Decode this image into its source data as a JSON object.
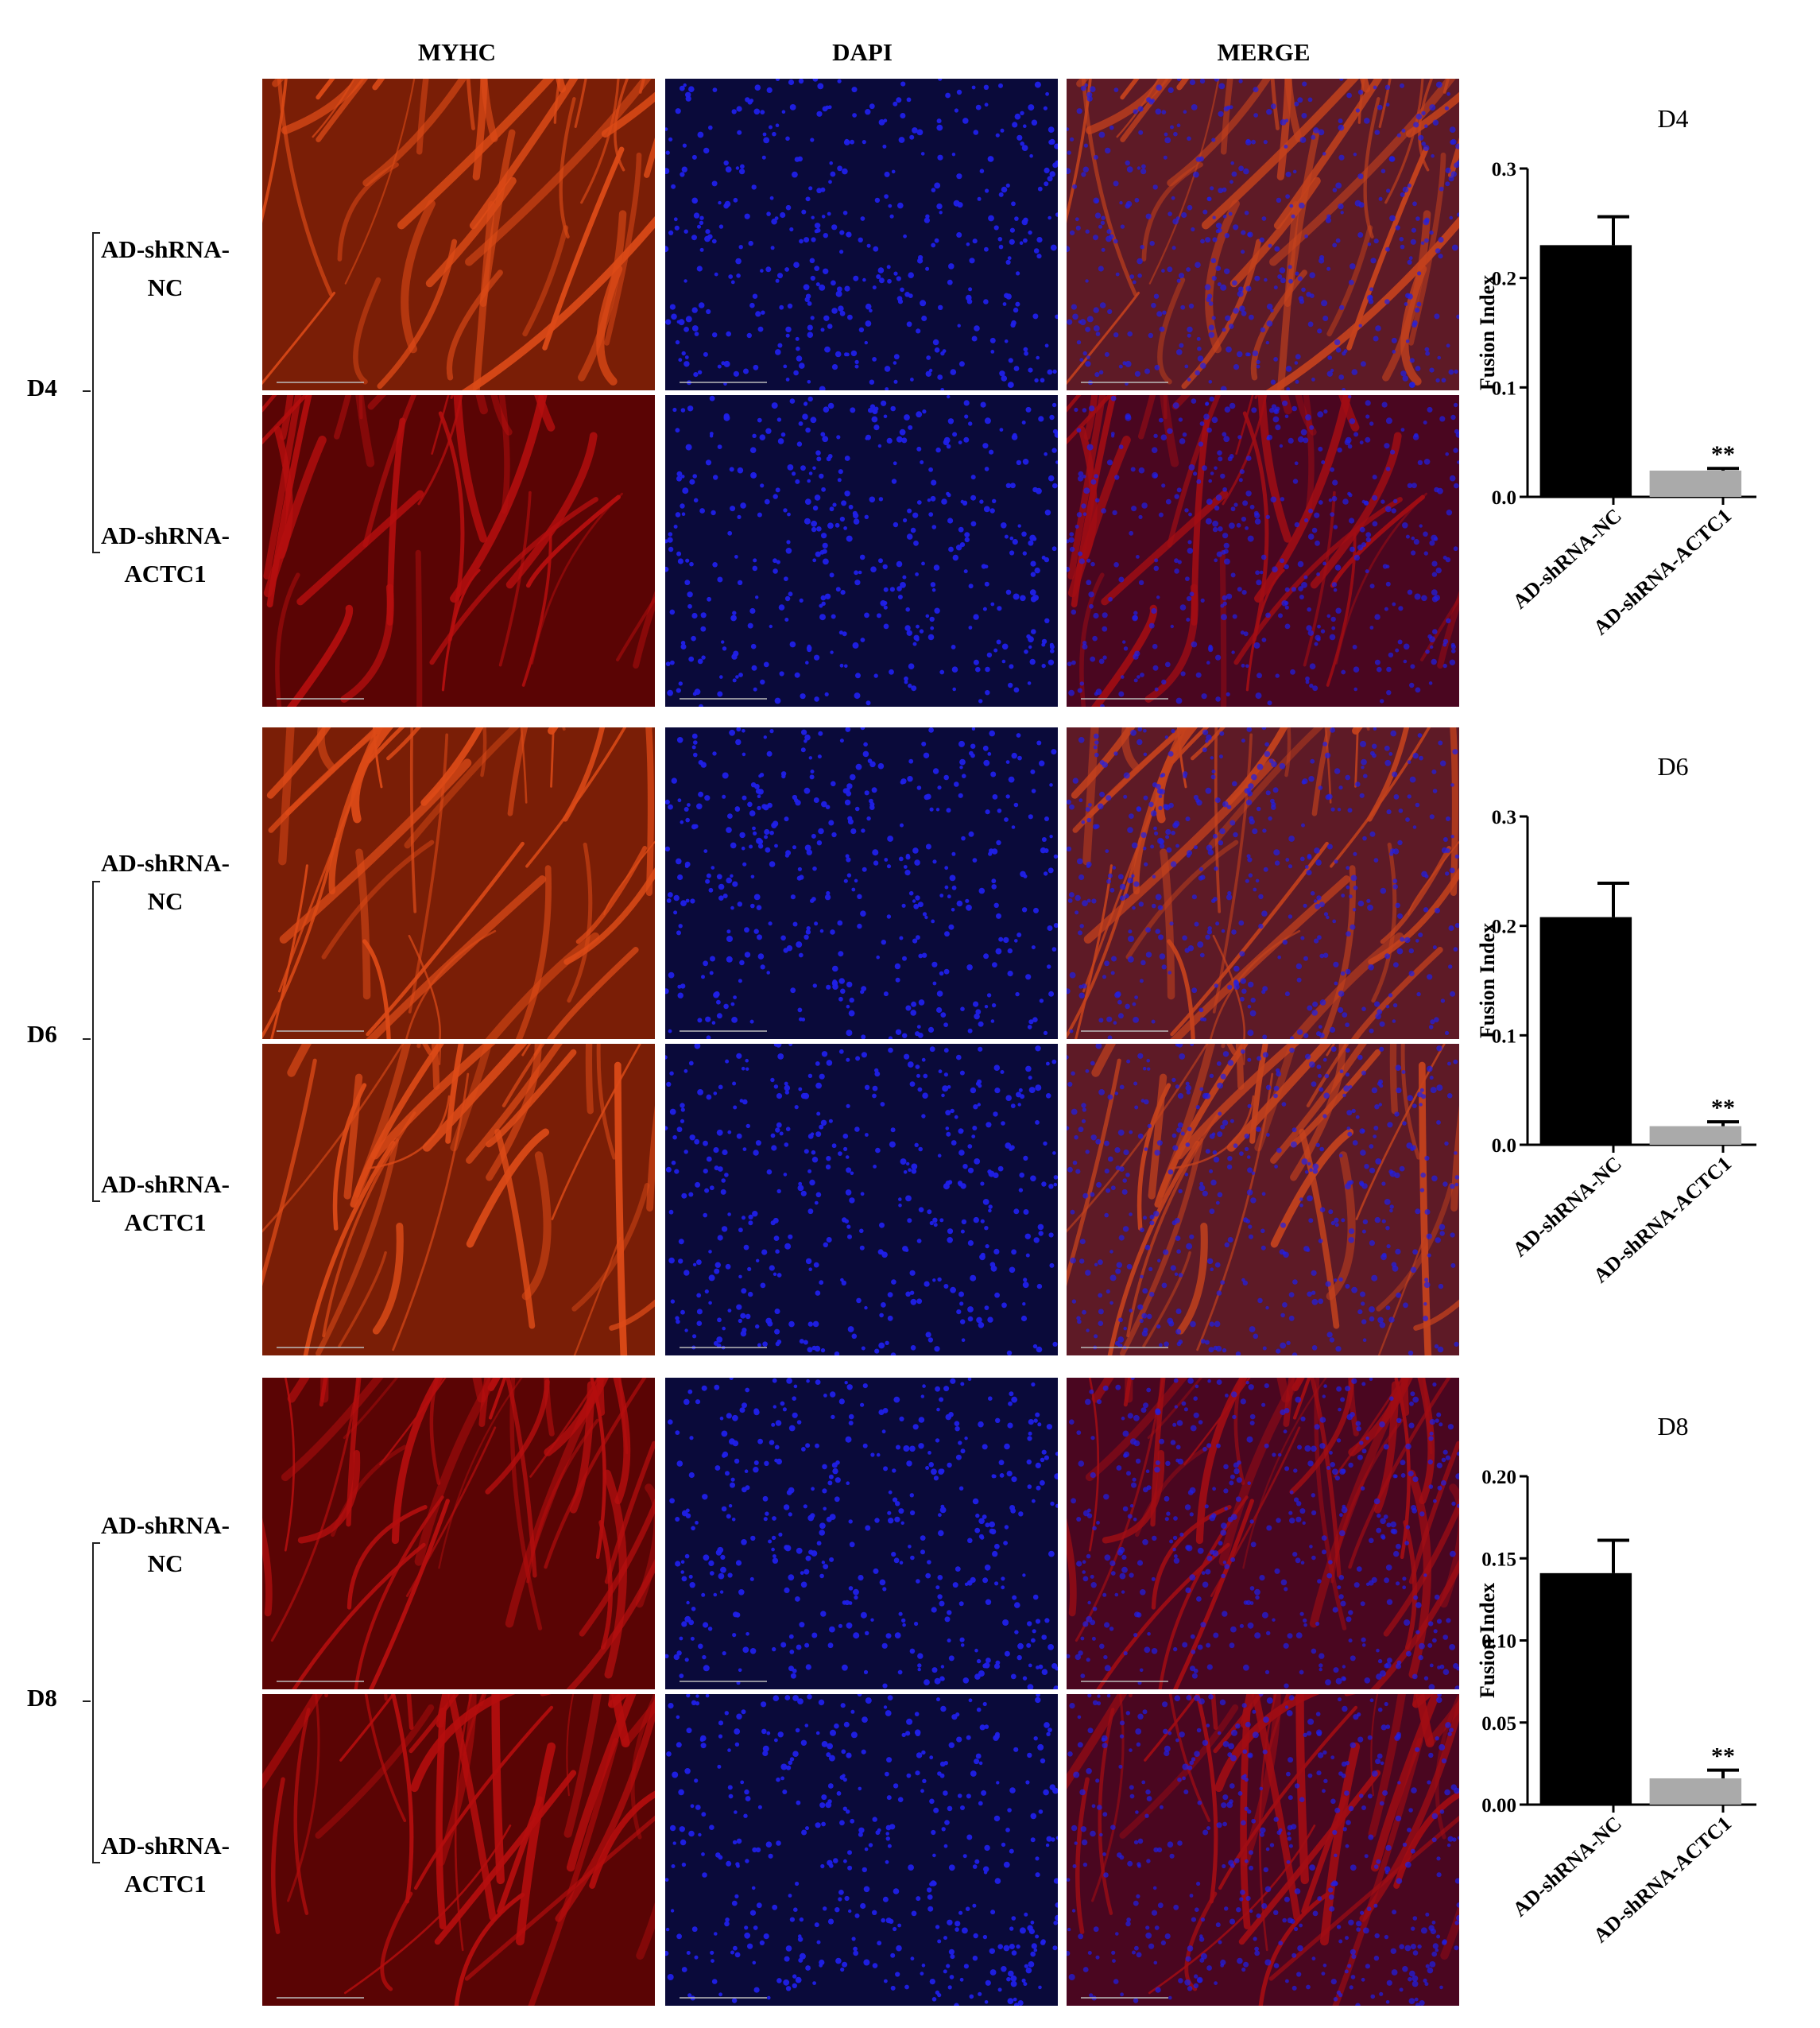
{
  "column_headers": [
    "MYHC",
    "DAPI",
    "MERGE"
  ],
  "rows": [
    {
      "day": "D4",
      "groups": [
        [
          "AD-shRNA-",
          "NC"
        ],
        [
          "AD-shRNA-",
          "ACTC1"
        ]
      ]
    },
    {
      "day": "D6",
      "groups": [
        [
          "AD-shRNA-",
          "NC"
        ],
        [
          "AD-shRNA-",
          "ACTC1"
        ]
      ]
    },
    {
      "day": "D8",
      "groups": [
        [
          "AD-shRNA-",
          "NC"
        ],
        [
          "AD-shRNA-",
          "ACTC1"
        ]
      ]
    }
  ],
  "colors": {
    "myhc_orange": "#e8501a",
    "myhc_red": "#c01010",
    "dapi_blue": "#2020e8",
    "bar_nc": "#000000",
    "bar_actc1": "#aaaaaa"
  },
  "chart_data": [
    {
      "type": "bar",
      "title": "D4",
      "ylabel": "Fusion Index",
      "categories": [
        "AD-shRNA-NC",
        "AD-shRNA-ACTC1"
      ],
      "values": [
        0.23,
        0.024
      ],
      "errors": [
        0.026,
        0.002
      ],
      "significance": [
        "",
        "**"
      ],
      "ylim": [
        0,
        0.3
      ],
      "yticks": [
        "0.0",
        "0.1",
        "0.2",
        "0.3"
      ],
      "ytick_values": [
        0,
        0.1,
        0.2,
        0.3
      ]
    },
    {
      "type": "bar",
      "title": "D6",
      "ylabel": "Fusion Index",
      "categories": [
        "AD-shRNA-NC",
        "AD-shRNA-ACTC1"
      ],
      "values": [
        0.208,
        0.017
      ],
      "errors": [
        0.031,
        0.004
      ],
      "significance": [
        "",
        "**"
      ],
      "ylim": [
        0,
        0.3
      ],
      "yticks": [
        "0.0",
        "0.1",
        "0.2",
        "0.3"
      ],
      "ytick_values": [
        0,
        0.1,
        0.2,
        0.3
      ]
    },
    {
      "type": "bar",
      "title": "D8",
      "ylabel": "Fusion Index",
      "categories": [
        "AD-shRNA-NC",
        "AD-shRNA-ACTC1"
      ],
      "values": [
        0.141,
        0.016
      ],
      "errors": [
        0.02,
        0.005
      ],
      "significance": [
        "",
        "**"
      ],
      "ylim": [
        0,
        0.2
      ],
      "yticks": [
        "0.00",
        "0.05",
        "0.10",
        "0.15",
        "0.20"
      ],
      "ytick_values": [
        0,
        0.05,
        0.1,
        0.15,
        0.2
      ]
    }
  ]
}
